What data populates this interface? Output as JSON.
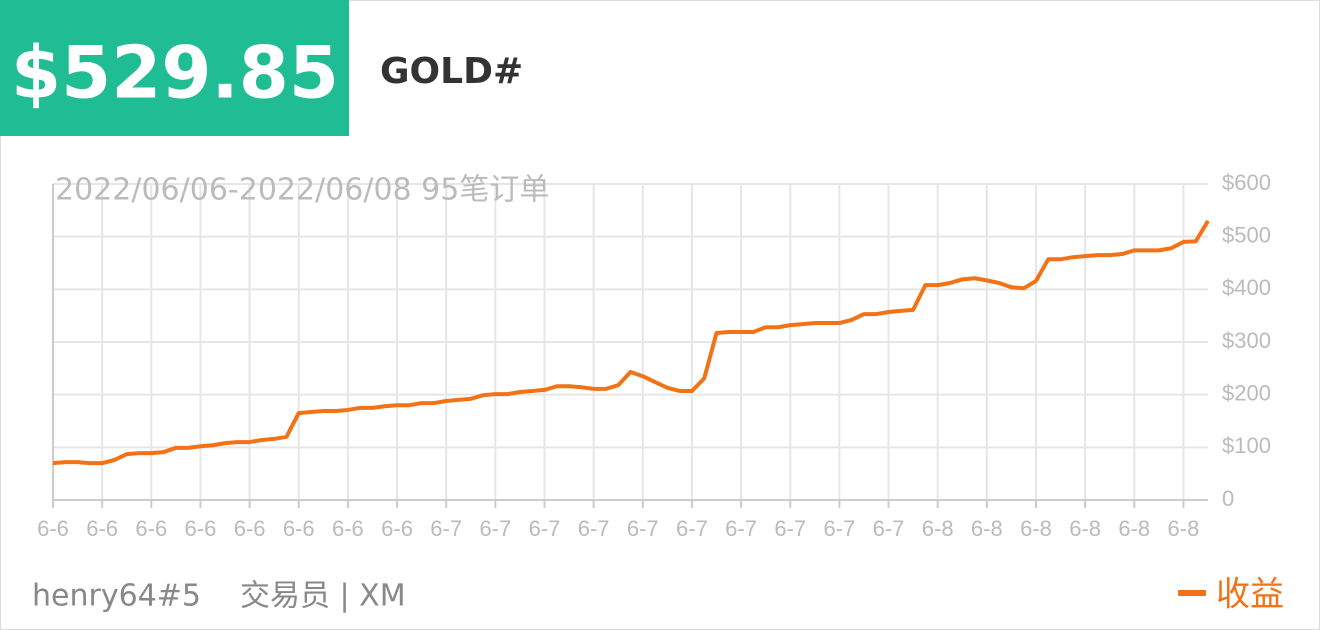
{
  "header": {
    "price": "$529.85",
    "symbol": "GOLD#"
  },
  "footer": {
    "trader": "henry64#5",
    "role": "交易员 | XM"
  },
  "chart_data": {
    "type": "line",
    "subtitle": "2022/06/06-2022/06/08 95笔订单",
    "categories": [
      "6-6",
      null,
      null,
      null,
      "6-6",
      null,
      null,
      null,
      "6-6",
      null,
      null,
      null,
      "6-6",
      null,
      null,
      null,
      "6-6",
      null,
      null,
      null,
      "6-6",
      null,
      null,
      null,
      "6-6",
      null,
      null,
      null,
      "6-6",
      null,
      null,
      null,
      "6-7",
      null,
      null,
      null,
      "6-7",
      null,
      null,
      null,
      "6-7",
      null,
      null,
      null,
      "6-7",
      null,
      null,
      null,
      "6-7",
      null,
      null,
      null,
      "6-7",
      null,
      null,
      null,
      "6-7",
      null,
      null,
      null,
      "6-7",
      null,
      null,
      null,
      "6-7",
      null,
      null,
      null,
      "6-7",
      null,
      null,
      null,
      "6-8",
      null,
      null,
      null,
      "6-8",
      null,
      null,
      null,
      "6-8",
      null,
      null,
      null,
      "6-8",
      null,
      null,
      null,
      "6-8",
      null,
      null,
      null,
      "6-8",
      null,
      null
    ],
    "series": [
      {
        "name": "收益",
        "color": "#f47216",
        "values": [
          70,
          72,
          72,
          70,
          70,
          76,
          87,
          89,
          89,
          91,
          99,
          99,
          102,
          104,
          108,
          110,
          110,
          114,
          116,
          120,
          165,
          167,
          169,
          169,
          171,
          175,
          175,
          178,
          180,
          180,
          184,
          184,
          188,
          190,
          192,
          199,
          201,
          201,
          205,
          207,
          209,
          216,
          216,
          214,
          211,
          211,
          218,
          243,
          235,
          224,
          213,
          207,
          207,
          231,
          317,
          319,
          319,
          319,
          328,
          328,
          332,
          334,
          336,
          336,
          336,
          342,
          353,
          353,
          357,
          359,
          361,
          408,
          408,
          412,
          419,
          421,
          417,
          412,
          404,
          402,
          416,
          457,
          457,
          461,
          463,
          465,
          465,
          467,
          474,
          474,
          474,
          478,
          490,
          491,
          530
        ]
      }
    ],
    "ylim": [
      0,
      600
    ],
    "yticks": [
      0,
      {
        "value": 100,
        "label": "$100"
      },
      {
        "value": 200,
        "label": "$200"
      },
      {
        "value": 300,
        "label": "$300"
      },
      {
        "value": 400,
        "label": "$400"
      },
      {
        "value": 500,
        "label": "$500"
      },
      {
        "value": 600,
        "label": "$600"
      }
    ],
    "grid": true,
    "legend": "bottom-right"
  }
}
